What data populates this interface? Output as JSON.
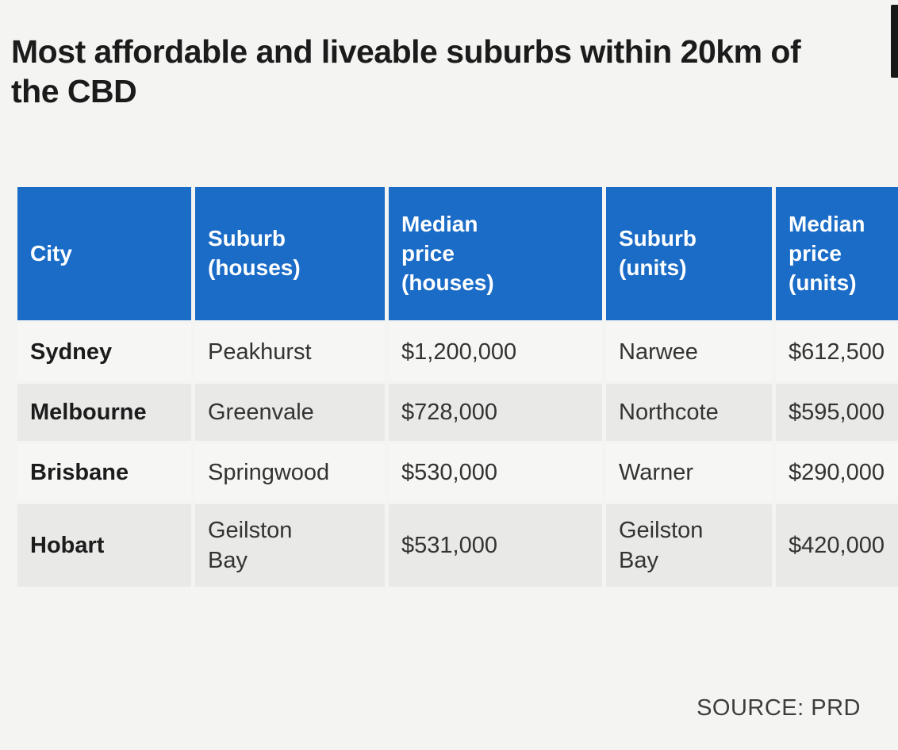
{
  "colors": {
    "header_bg": "#1a6cc7",
    "header_text": "#ffffff",
    "row_odd": "#f6f6f4",
    "row_even": "#e9e9e7",
    "page_bg": "#f4f4f2",
    "title_text": "#1b1b1b"
  },
  "chart_data": {
    "type": "table",
    "title": "Most affordable and liveable suburbs within 20km of the CBD",
    "source": "SOURCE: PRD",
    "columns": [
      "City",
      "Suburb (houses)",
      "Median price (houses)",
      "Suburb (units)",
      "Median price (units)"
    ],
    "rows": [
      [
        "Sydney",
        "Peakhurst",
        "$1,200,000",
        "Narwee",
        "$612,500"
      ],
      [
        "Melbourne",
        "Greenvale",
        "$728,000",
        "Northcote",
        "$595,000"
      ],
      [
        "Brisbane",
        "Springwood",
        "$530,000",
        "Warner",
        "$290,000"
      ],
      [
        "Hobart",
        "Geilston Bay",
        "$531,000",
        "Geilston Bay",
        "$420,000"
      ]
    ]
  }
}
